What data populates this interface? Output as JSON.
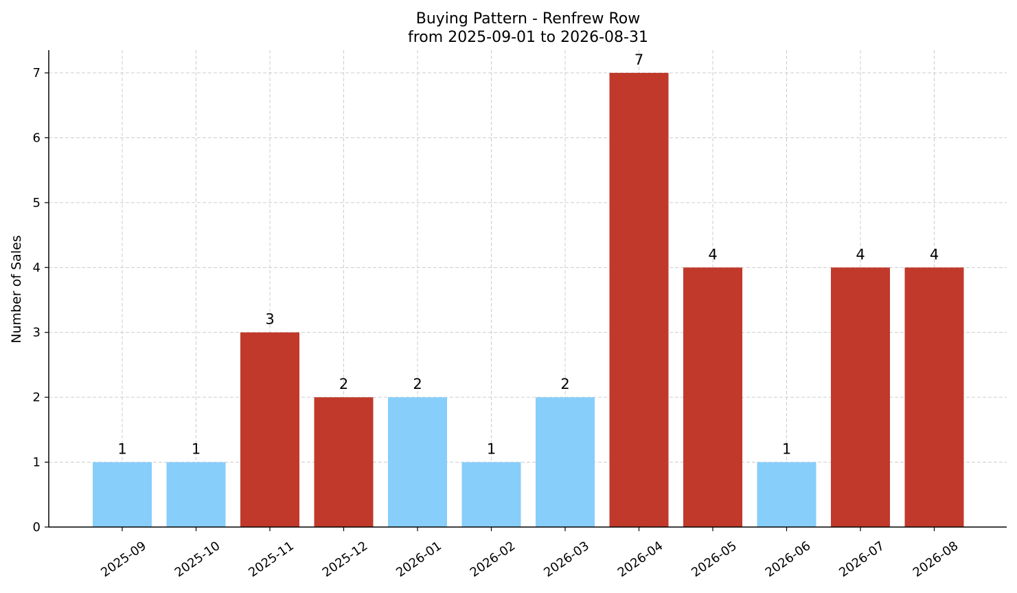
{
  "chart_data": {
    "type": "bar",
    "title": "Buying Pattern - Renfrew Row",
    "subtitle": "from 2025-09-01 to 2026-08-31",
    "xlabel": "",
    "ylabel": "Number of Sales",
    "ylim": [
      0,
      7.35
    ],
    "yticks": [
      "0",
      "1",
      "2",
      "3",
      "4",
      "5",
      "6",
      "7"
    ],
    "grid": true,
    "categories": [
      "2025-09",
      "2025-10",
      "2025-11",
      "2025-12",
      "2026-01",
      "2026-02",
      "2026-03",
      "2026-04",
      "2026-05",
      "2026-06",
      "2026-07",
      "2026-08"
    ],
    "values": [
      1,
      1,
      3,
      2,
      2,
      1,
      2,
      7,
      4,
      1,
      4,
      4
    ],
    "data_labels": [
      "1",
      "1",
      "3",
      "2",
      "2",
      "1",
      "2",
      "7",
      "4",
      "1",
      "4",
      "4"
    ],
    "bar_colors": [
      "#87cefa",
      "#87cefa",
      "#c0392b",
      "#c0392b",
      "#87cefa",
      "#87cefa",
      "#87cefa",
      "#c0392b",
      "#c0392b",
      "#87cefa",
      "#c0392b",
      "#c0392b"
    ]
  }
}
